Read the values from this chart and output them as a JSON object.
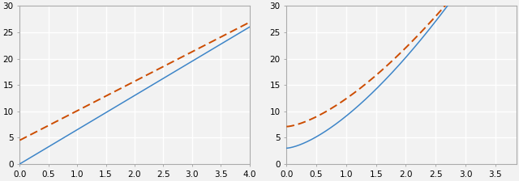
{
  "left": {
    "xlim": [
      0,
      4
    ],
    "ylim": [
      0,
      30
    ],
    "xticks": [
      0,
      0.5,
      1,
      1.5,
      2,
      2.5,
      3,
      3.5,
      4
    ],
    "yticks": [
      0,
      5,
      10,
      15,
      20,
      25,
      30
    ],
    "blue_params": [
      0.0,
      6.5
    ],
    "orange_params": [
      4.5,
      5.6
    ],
    "blue_color": "#3d85c8",
    "orange_color": "#cc4c00",
    "bg_color": "#f2f2f2",
    "grid_color": "#ffffff",
    "spine_color": "#aaaaaa"
  },
  "right": {
    "xlim": [
      0,
      3.85
    ],
    "ylim": [
      0,
      30
    ],
    "xticks": [
      0,
      0.5,
      1,
      1.5,
      2,
      2.5,
      3,
      3.5
    ],
    "yticks": [
      0,
      5,
      10,
      15,
      20,
      25,
      30
    ],
    "blue_params": [
      3.0,
      6.1
    ],
    "orange_params": [
      7.1,
      5.3
    ],
    "blue_color": "#3d85c8",
    "orange_color": "#cc4c00",
    "bg_color": "#f2f2f2",
    "grid_color": "#ffffff",
    "spine_color": "#aaaaaa",
    "power": 1.5
  },
  "fig_bg": "#f2f2f2",
  "tick_fontsize": 7.5,
  "linewidth_blue": 1.1,
  "linewidth_orange": 1.4
}
